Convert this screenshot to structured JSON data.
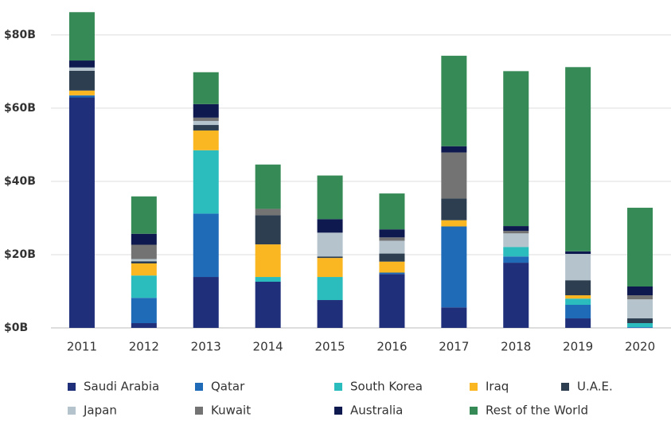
{
  "chart_data": {
    "type": "stacked_bar",
    "categories": [
      "2011",
      "2012",
      "2013",
      "2014",
      "2015",
      "2016",
      "2017",
      "2018",
      "2019",
      "2020"
    ],
    "series": [
      {
        "name": "Saudi Arabia",
        "color": "#1f2f7a",
        "values": [
          62.9,
          1.3,
          13.9,
          12.6,
          7.6,
          14.7,
          5.6,
          17.8,
          2.6,
          0
        ]
      },
      {
        "name": "Qatar",
        "color": "#1f6bb8",
        "values": [
          0.6,
          6.9,
          17.3,
          0,
          0,
          0.4,
          22.1,
          1.7,
          3.7,
          0.2
        ]
      },
      {
        "name": "South Korea",
        "color": "#2bbdbd",
        "values": [
          0,
          6.1,
          17.3,
          1.3,
          6.3,
          0,
          0,
          2.6,
          1.7,
          1.1
        ]
      },
      {
        "name": "Iraq",
        "color": "#fbb721",
        "values": [
          1.3,
          3.3,
          5.4,
          8.9,
          5.2,
          3.0,
          1.7,
          0,
          0.9,
          0
        ]
      },
      {
        "name": "U.A.E.",
        "color": "#2c3e50",
        "values": [
          5.4,
          0.6,
          1.5,
          8.0,
          0.4,
          2.2,
          5.9,
          0,
          4.1,
          1.3
        ]
      },
      {
        "name": "Japan",
        "color": "#b5c3cc",
        "values": [
          0.9,
          0.6,
          1.1,
          0,
          6.5,
          3.5,
          0,
          3.7,
          7.2,
          5.2
        ]
      },
      {
        "name": "Kuwait",
        "color": "#737373",
        "values": [
          0,
          3.9,
          0.9,
          1.7,
          0,
          0.9,
          12.6,
          0.7,
          0,
          1.1
        ]
      },
      {
        "name": "Australia",
        "color": "#0e1a4f",
        "values": [
          1.9,
          3.0,
          3.7,
          0,
          3.7,
          2.2,
          1.7,
          1.3,
          0.7,
          2.4
        ]
      },
      {
        "name": "Rest of the World",
        "color": "#368a55",
        "values": [
          13.2,
          10.2,
          8.7,
          12.1,
          11.9,
          9.8,
          24.7,
          42.3,
          50.3,
          21.5
        ]
      }
    ],
    "ylim": [
      0,
      88
    ],
    "yticks": [
      {
        "value": 0,
        "label": "$0B"
      },
      {
        "value": 20,
        "label": "$20B"
      },
      {
        "value": 40,
        "label": "$40B"
      },
      {
        "value": 60,
        "label": "$60B"
      },
      {
        "value": 80,
        "label": "$80B"
      }
    ],
    "grid": true,
    "legend": "bottom"
  }
}
